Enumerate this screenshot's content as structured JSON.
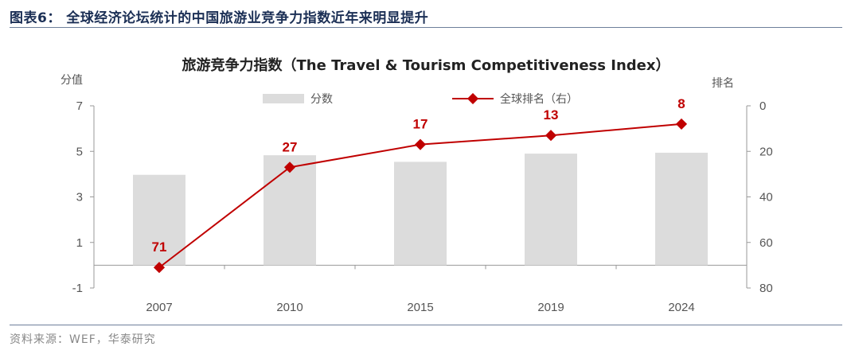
{
  "figure_title": "图表6： 全球经济论坛统计的中国旅游业竞争力指数近年来明显提升",
  "source": "资料来源：WEF，华泰研究",
  "colors": {
    "bar": "#dcdcdc",
    "line": "#c00000",
    "label": "#c00000",
    "title_blue": "#1b2f55"
  },
  "chart_data": {
    "type": "bar",
    "title": "旅游竞争力指数（The Travel & Tourism Competitiveness Index）",
    "ylabel": "分值",
    "y2label": "排名",
    "categories": [
      "2007",
      "2010",
      "2015",
      "2019",
      "2024"
    ],
    "series": [
      {
        "name": "分数",
        "type": "bar",
        "axis": "left",
        "values": [
          3.97,
          4.83,
          4.54,
          4.9,
          4.94
        ]
      },
      {
        "name": "全球排名（右）",
        "type": "line",
        "axis": "right",
        "values": [
          71,
          27,
          17,
          13,
          8
        ]
      }
    ],
    "ylim": [
      -1,
      7
    ],
    "yticks": [
      -1,
      1,
      3,
      5,
      7
    ],
    "y2lim": [
      0,
      80
    ],
    "y2ticks": [
      0,
      20,
      40,
      60,
      80
    ],
    "y2_inverted": true,
    "grid": false,
    "legend": "top"
  }
}
